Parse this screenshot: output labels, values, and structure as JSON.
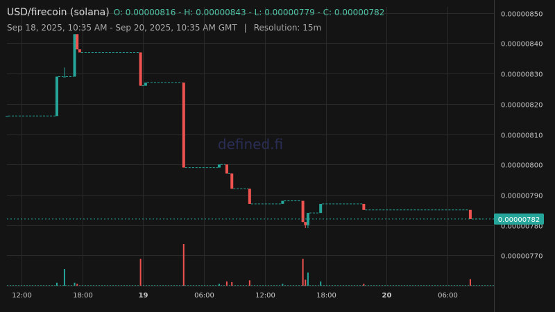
{
  "header": {
    "title": "USD/firecoin (solana)",
    "ohlc": "O: 0.00000816 - H: 0.00000843 - L: 0.00000779 - C: 0.00000782",
    "range": "Sep 18, 2025, 10:35 AM - Sep 20, 2025, 10:35 AM GMT",
    "separator": "|",
    "resolution": "Resolution: 15m"
  },
  "watermark": "defined.fi",
  "colors": {
    "background": "#141414",
    "up": "#26a69a",
    "down": "#ef5350",
    "grid": "#2a2a2a",
    "axis_text": "#c8c8c8",
    "last_price_bg": "#26a69a"
  },
  "chart_data": {
    "type": "candlestick",
    "title": "",
    "xlabel": "",
    "ylabel": "",
    "grid": true,
    "ylim": [
      7.6e-06,
      8.52e-06
    ],
    "y_ticks": [
      "0.00000850",
      "0.00000840",
      "0.00000830",
      "0.00000820",
      "0.00000810",
      "0.00000800",
      "0.00000790",
      "0.00000780",
      "0.00000770"
    ],
    "x_ticks": [
      {
        "label": "12:00",
        "hour": 12
      },
      {
        "label": "18:00",
        "hour": 18
      },
      {
        "label": "19",
        "hour": 24,
        "bold": true
      },
      {
        "label": "06:00",
        "hour": 30
      },
      {
        "label": "12:00",
        "hour": 36
      },
      {
        "label": "18:00",
        "hour": 42
      },
      {
        "label": "20",
        "hour": 48,
        "bold": true
      },
      {
        "label": "06:00",
        "hour": 54
      }
    ],
    "x_range_hours": [
      10.58,
      58.58
    ],
    "last_price": "0.00000782",
    "candles": [
      {
        "h": 10.58,
        "o": 8.16e-06,
        "hi": 8.16e-06,
        "lo": 8.16e-06,
        "c": 8.16e-06
      },
      {
        "h": 15.5,
        "o": 8.16e-06,
        "hi": 8.29e-06,
        "lo": 8.16e-06,
        "c": 8.29e-06
      },
      {
        "h": 16.25,
        "o": 8.29e-06,
        "hi": 8.32e-06,
        "lo": 8.29e-06,
        "c": 8.29e-06
      },
      {
        "h": 17.25,
        "o": 8.29e-06,
        "hi": 8.43e-06,
        "lo": 8.29e-06,
        "c": 8.43e-06
      },
      {
        "h": 17.5,
        "o": 8.43e-06,
        "hi": 8.43e-06,
        "lo": 8.38e-06,
        "c": 8.38e-06
      },
      {
        "h": 17.75,
        "o": 8.38e-06,
        "hi": 8.38e-06,
        "lo": 8.37e-06,
        "c": 8.37e-06
      },
      {
        "h": 23.75,
        "o": 8.37e-06,
        "hi": 8.37e-06,
        "lo": 8.26e-06,
        "c": 8.26e-06
      },
      {
        "h": 24.25,
        "o": 8.26e-06,
        "hi": 8.27e-06,
        "lo": 8.26e-06,
        "c": 8.27e-06
      },
      {
        "h": 28.0,
        "o": 8.27e-06,
        "hi": 8.27e-06,
        "lo": 7.99e-06,
        "c": 7.99e-06
      },
      {
        "h": 31.5,
        "o": 7.99e-06,
        "hi": 8e-06,
        "lo": 7.99e-06,
        "c": 8e-06
      },
      {
        "h": 32.25,
        "o": 8e-06,
        "hi": 8e-06,
        "lo": 7.97e-06,
        "c": 7.97e-06
      },
      {
        "h": 32.75,
        "o": 7.97e-06,
        "hi": 7.97e-06,
        "lo": 7.92e-06,
        "c": 7.92e-06
      },
      {
        "h": 34.5,
        "o": 7.92e-06,
        "hi": 7.92e-06,
        "lo": 7.87e-06,
        "c": 7.87e-06
      },
      {
        "h": 37.75,
        "o": 7.87e-06,
        "hi": 7.88e-06,
        "lo": 7.87e-06,
        "c": 7.88e-06
      },
      {
        "h": 39.75,
        "o": 7.88e-06,
        "hi": 7.88e-06,
        "lo": 7.81e-06,
        "c": 7.81e-06
      },
      {
        "h": 40.0,
        "o": 7.81e-06,
        "hi": 7.81e-06,
        "lo": 7.79e-06,
        "c": 7.8e-06
      },
      {
        "h": 40.25,
        "o": 7.8e-06,
        "hi": 7.84e-06,
        "lo": 7.79e-06,
        "c": 7.84e-06
      },
      {
        "h": 41.5,
        "o": 7.84e-06,
        "hi": 7.87e-06,
        "lo": 7.84e-06,
        "c": 7.87e-06
      },
      {
        "h": 45.75,
        "o": 7.87e-06,
        "hi": 7.87e-06,
        "lo": 7.85e-06,
        "c": 7.85e-06
      },
      {
        "h": 56.25,
        "o": 7.85e-06,
        "hi": 7.85e-06,
        "lo": 7.82e-06,
        "c": 7.82e-06
      }
    ],
    "volume": [
      {
        "h": 15.5,
        "v": 5
      },
      {
        "h": 16.25,
        "v": 28
      },
      {
        "h": 17.25,
        "v": 5
      },
      {
        "h": 17.5,
        "v": 3
      },
      {
        "h": 23.75,
        "v": 45
      },
      {
        "h": 28.0,
        "v": 70
      },
      {
        "h": 31.5,
        "v": 3
      },
      {
        "h": 32.25,
        "v": 7
      },
      {
        "h": 32.75,
        "v": 6
      },
      {
        "h": 34.5,
        "v": 9
      },
      {
        "h": 37.75,
        "v": 3
      },
      {
        "h": 39.75,
        "v": 45
      },
      {
        "h": 40.0,
        "v": 10
      },
      {
        "h": 40.25,
        "v": 22
      },
      {
        "h": 41.5,
        "v": 7
      },
      {
        "h": 45.75,
        "v": 3
      },
      {
        "h": 56.25,
        "v": 11
      }
    ]
  }
}
